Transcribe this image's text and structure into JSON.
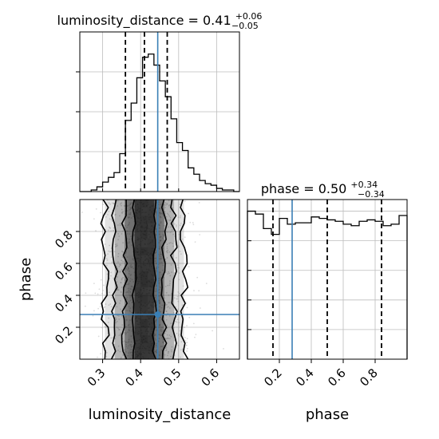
{
  "chart_data": {
    "type": "corner",
    "parameters": [
      "luminosity_distance",
      "phase"
    ],
    "injected": {
      "luminosity_distance": 0.445,
      "phase": 0.28
    },
    "colors": {
      "injection": "#3a7fb5",
      "hist": "#000000",
      "quantile": "#000000",
      "scatter": "#9a9a9a",
      "grid": "#bdbdbd"
    },
    "grid": true,
    "panels": [
      {
        "id": "luminosity_distance_hist",
        "type": "step_histogram",
        "title": {
          "label": "luminosity_distance = 0.41",
          "sup": "+0.06",
          "sub": "−0.05"
        },
        "xlim": [
          0.24,
          0.66
        ],
        "ylim": [
          0,
          1.01
        ],
        "quantiles": [
          0.36,
          0.41,
          0.47
        ],
        "bin_edges": [
          0.24,
          0.255,
          0.27,
          0.285,
          0.3,
          0.315,
          0.33,
          0.345,
          0.36,
          0.375,
          0.39,
          0.405,
          0.42,
          0.435,
          0.45,
          0.465,
          0.48,
          0.495,
          0.51,
          0.525,
          0.54,
          0.555,
          0.57,
          0.585,
          0.6,
          0.615,
          0.63,
          0.645,
          0.66
        ],
        "density": [
          0,
          0,
          0.01,
          0.03,
          0.06,
          0.09,
          0.12,
          0.24,
          0.45,
          0.56,
          0.72,
          0.85,
          0.87,
          0.8,
          0.7,
          0.6,
          0.46,
          0.31,
          0.26,
          0.15,
          0.11,
          0.07,
          0.05,
          0.04,
          0.02,
          0.01,
          0.01,
          0
        ]
      },
      {
        "id": "phase_hist",
        "type": "step_histogram",
        "title": {
          "label": "phase = 0.50",
          "sup": "+0.34",
          "sub": "−0.34"
        },
        "xlim": [
          0,
          1
        ],
        "ylim": [
          0,
          1.1
        ],
        "quantiles": [
          0.16,
          0.5,
          0.84
        ],
        "xticks": [
          "0.2",
          "0.4",
          "0.6",
          "0.8"
        ],
        "xlabel": "phase",
        "bin_edges": [
          0,
          0.05,
          0.1,
          0.15,
          0.2,
          0.25,
          0.3,
          0.35,
          0.4,
          0.45,
          0.5,
          0.55,
          0.6,
          0.65,
          0.7,
          0.75,
          0.8,
          0.85,
          0.9,
          0.95,
          1.0
        ],
        "density": [
          1.02,
          1.0,
          0.9,
          0.86,
          0.97,
          0.93,
          0.94,
          0.94,
          0.98,
          0.97,
          0.96,
          0.95,
          0.93,
          0.92,
          0.95,
          0.96,
          0.95,
          0.92,
          0.93,
          0.99
        ]
      },
      {
        "id": "joint",
        "type": "2d_density",
        "xlim": [
          0.24,
          0.66
        ],
        "ylim": [
          0.0,
          1.0
        ],
        "xticks": [
          "0.3",
          "0.4",
          "0.5",
          "0.6"
        ],
        "yticks": [
          "0.2",
          "0.4",
          "0.6",
          "0.8"
        ],
        "xlabel": "luminosity_distance",
        "ylabel": "phase",
        "contour_widths_sigma": [
          0.5,
          1.0,
          1.5,
          2.0
        ],
        "center": 0.41,
        "sigma": 0.052
      }
    ]
  }
}
